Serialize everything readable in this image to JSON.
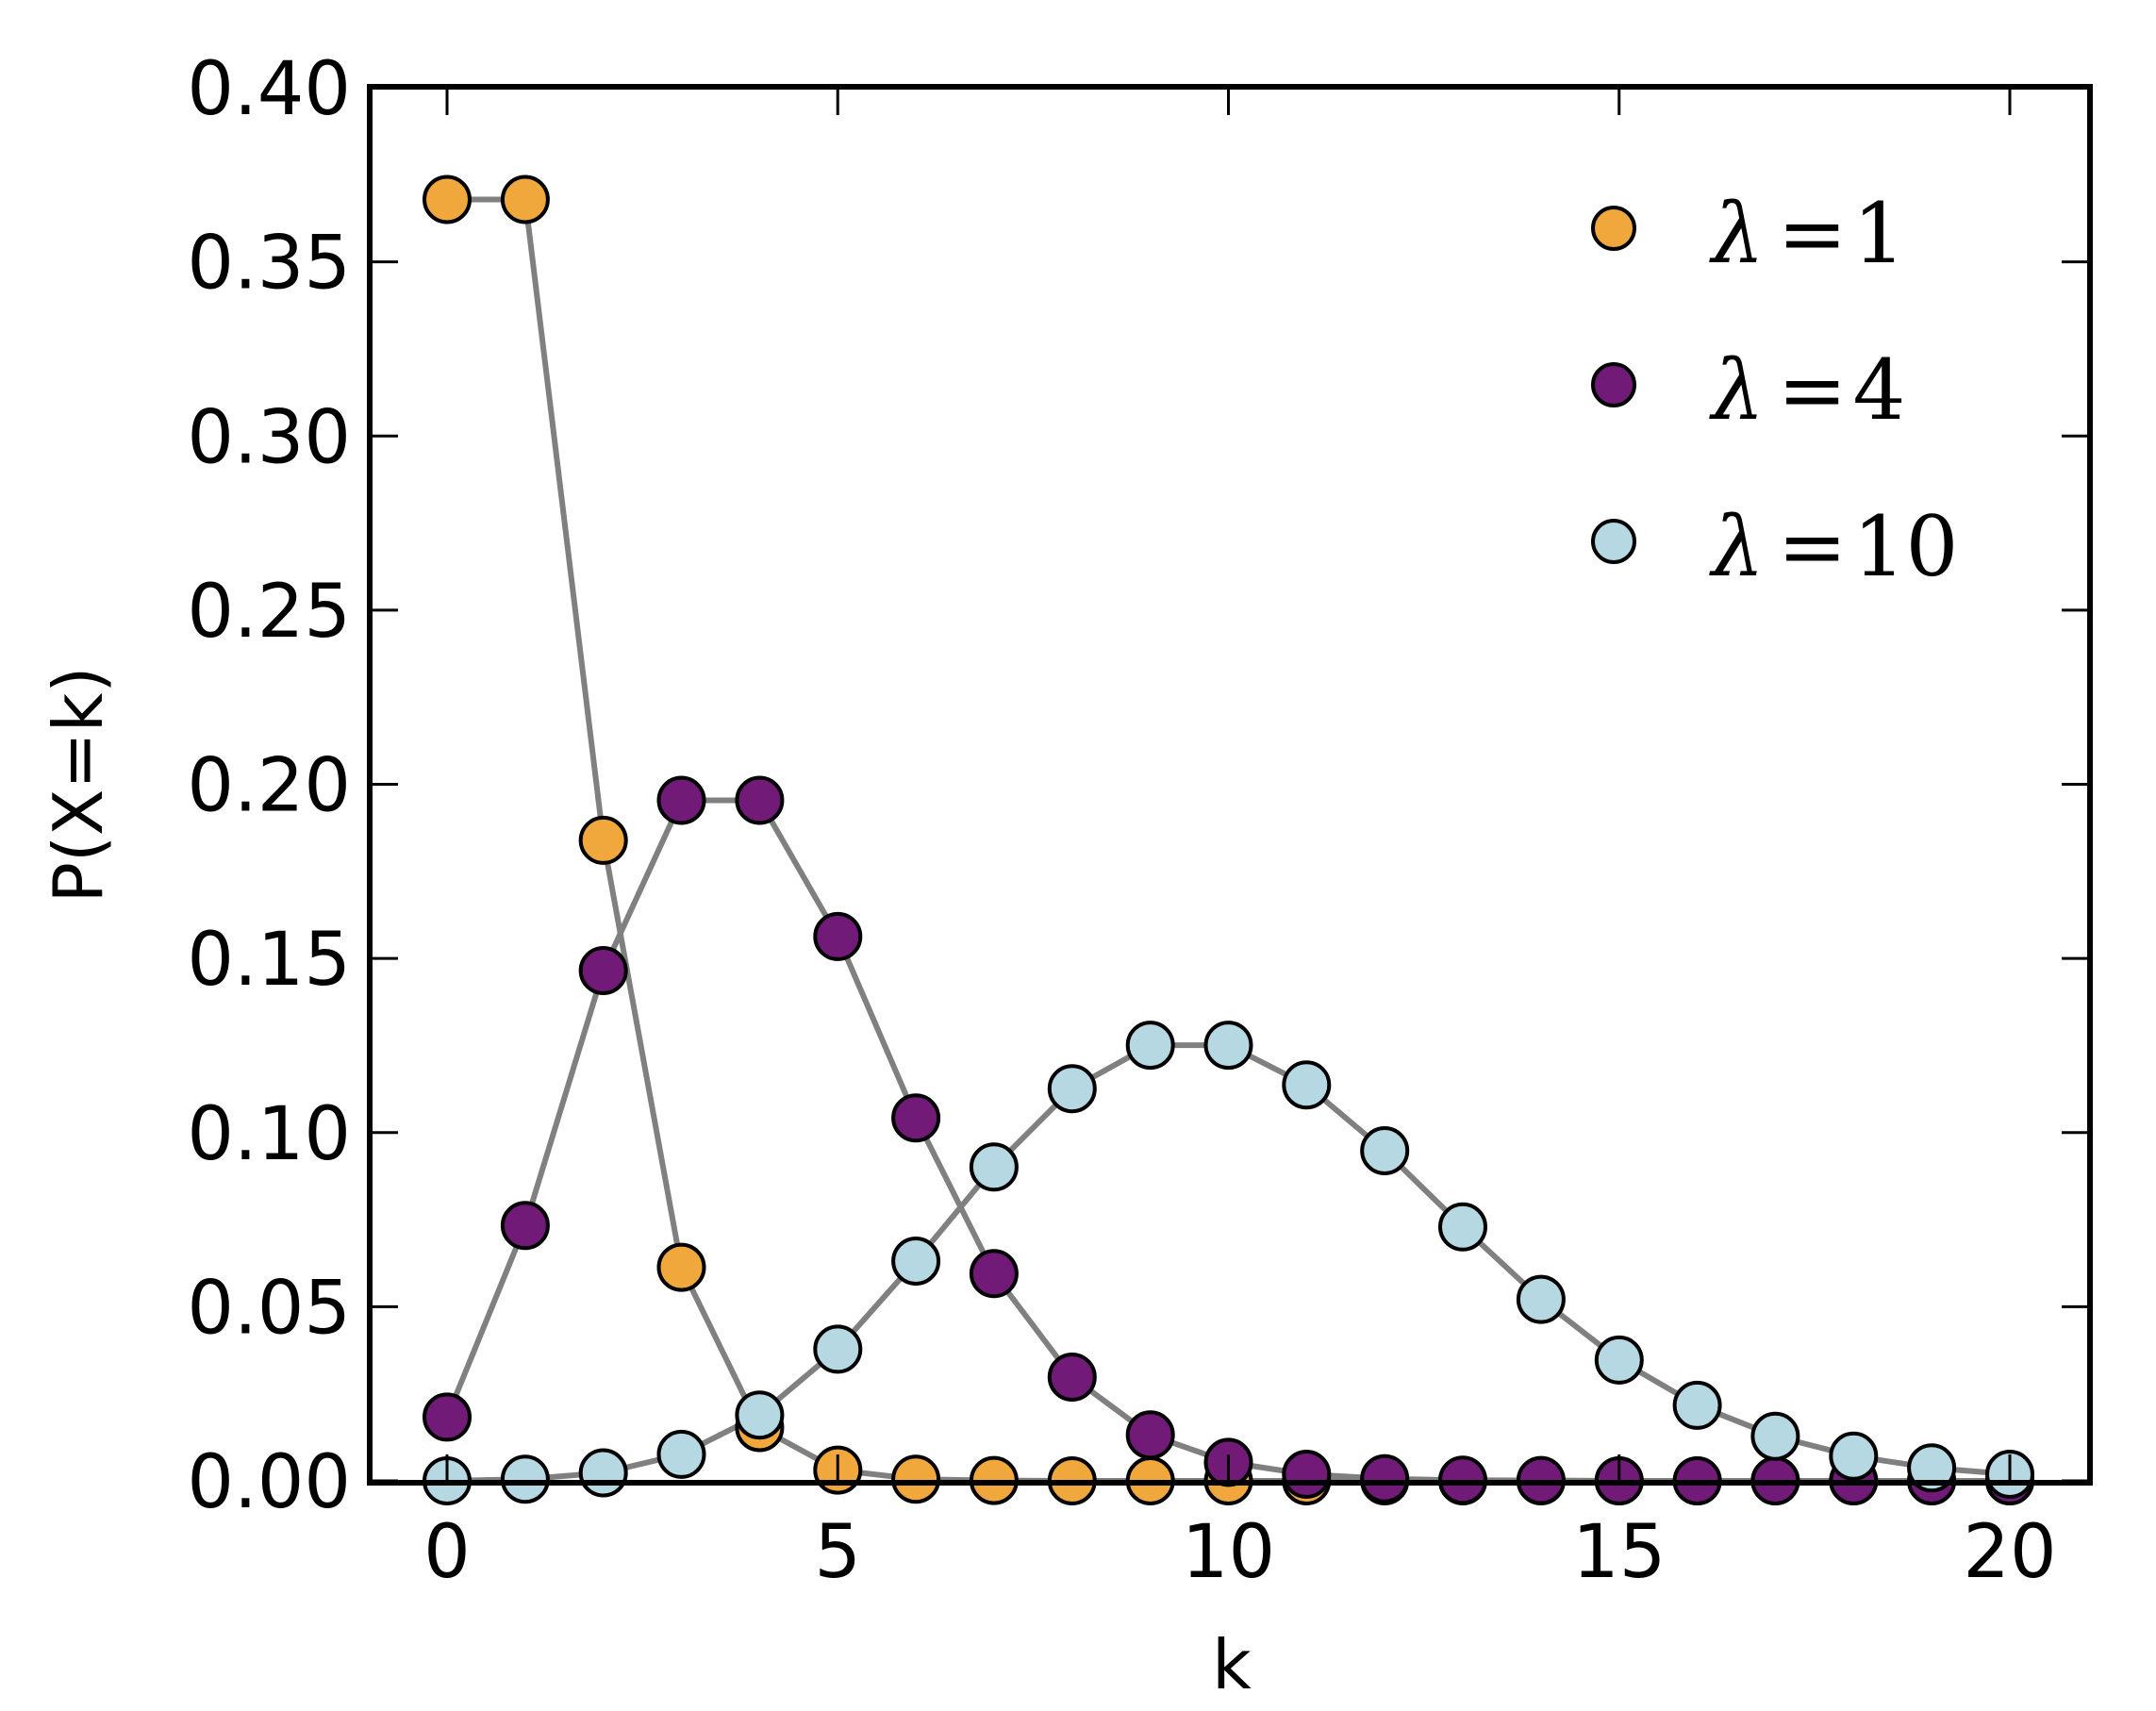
{
  "chart_data": {
    "type": "line",
    "title": "",
    "xlabel": "k",
    "ylabel": "P(X=k)",
    "xlim": [
      -1,
      21
    ],
    "ylim": [
      0,
      0.4
    ],
    "xticks": [
      0,
      5,
      10,
      15,
      20
    ],
    "xtick_labels": [
      "0",
      "5",
      "10",
      "15",
      "20"
    ],
    "yticks": [
      0.0,
      0.05,
      0.1,
      0.15,
      0.2,
      0.25,
      0.3,
      0.35,
      0.4
    ],
    "ytick_labels": [
      "0.00",
      "0.05",
      "0.10",
      "0.15",
      "0.20",
      "0.25",
      "0.30",
      "0.35",
      "0.40"
    ],
    "grid": false,
    "legend_position": "upper right",
    "line_color": "#808080",
    "x": [
      0,
      1,
      2,
      3,
      4,
      5,
      6,
      7,
      8,
      9,
      10,
      11,
      12,
      13,
      14,
      15,
      16,
      17,
      18,
      19,
      20
    ],
    "series": [
      {
        "name": "λ=1",
        "label_var": "λ",
        "label_value": "1",
        "color": "#f0a83c",
        "values": [
          0.3679,
          0.3679,
          0.1839,
          0.0613,
          0.0153,
          0.0031,
          0.0005,
          0.0001,
          0.0,
          0.0,
          0.0,
          0.0,
          0.0,
          0.0,
          0.0,
          0.0,
          0.0,
          0.0,
          0.0,
          0.0,
          0.0
        ]
      },
      {
        "name": "λ=4",
        "label_var": "λ",
        "label_value": "4",
        "color": "#711a78",
        "values": [
          0.0183,
          0.0733,
          0.1465,
          0.1954,
          0.1954,
          0.1563,
          0.1042,
          0.0595,
          0.0298,
          0.0132,
          0.0053,
          0.0019,
          0.0006,
          0.0002,
          0.0001,
          0.0,
          0.0,
          0.0,
          0.0,
          0.0,
          0.0
        ]
      },
      {
        "name": "λ=10",
        "label_var": "λ",
        "label_value": "10",
        "color": "#b5d8e3",
        "values": [
          0.0,
          0.0005,
          0.0023,
          0.0076,
          0.0189,
          0.0378,
          0.0631,
          0.0901,
          0.1126,
          0.1251,
          0.1251,
          0.1137,
          0.0948,
          0.0729,
          0.0521,
          0.0347,
          0.0217,
          0.0128,
          0.0071,
          0.0037,
          0.0019
        ]
      }
    ]
  }
}
